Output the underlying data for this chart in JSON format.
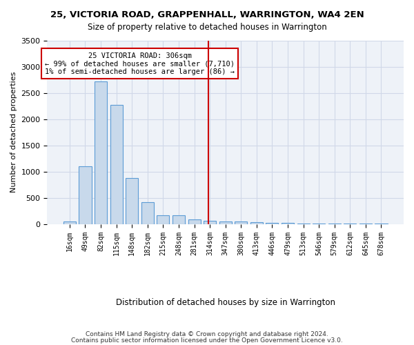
{
  "title": "25, VICTORIA ROAD, GRAPPENHALL, WARRINGTON, WA4 2EN",
  "subtitle": "Size of property relative to detached houses in Warrington",
  "xlabel": "Distribution of detached houses by size in Warrington",
  "ylabel": "Number of detached properties",
  "bar_values": [
    50,
    1100,
    2720,
    2270,
    880,
    410,
    170,
    170,
    90,
    60,
    50,
    40,
    30,
    20,
    15,
    10,
    10,
    5,
    5,
    5,
    3
  ],
  "bar_labels": [
    "16sqm",
    "49sqm",
    "82sqm",
    "115sqm",
    "148sqm",
    "182sqm",
    "215sqm",
    "248sqm",
    "281sqm",
    "314sqm",
    "347sqm",
    "380sqm",
    "413sqm",
    "446sqm",
    "479sqm",
    "513sqm",
    "546sqm",
    "579sqm",
    "612sqm",
    "645sqm",
    "678sqm"
  ],
  "bar_color": "#c8d9eb",
  "bar_edge_color": "#5b9bd5",
  "grid_color": "#d0d8e8",
  "bg_color": "#eef2f8",
  "vline_pos": 8.9,
  "vline_color": "#cc0000",
  "annotation_text": "25 VICTORIA ROAD: 306sqm\n← 99% of detached houses are smaller (7,710)\n1% of semi-detached houses are larger (86) →",
  "annotation_box_color": "#cc0000",
  "ylim": [
    0,
    3500
  ],
  "yticks": [
    0,
    500,
    1000,
    1500,
    2000,
    2500,
    3000,
    3500
  ],
  "footer1": "Contains HM Land Registry data © Crown copyright and database right 2024.",
  "footer2": "Contains public sector information licensed under the Open Government Licence v3.0."
}
